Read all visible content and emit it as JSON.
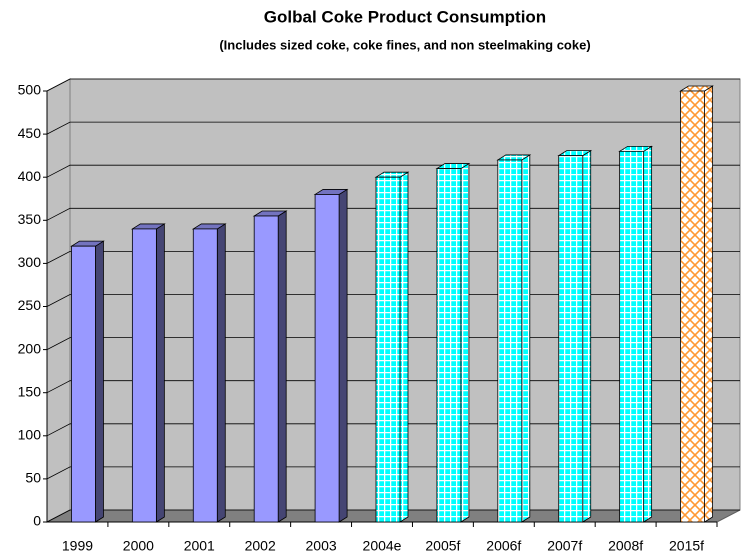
{
  "chart_data": {
    "type": "bar3d",
    "title": "Golbal Coke Product Consumption",
    "subtitle": "(Includes sized coke, coke fines, and non steelmaking coke)",
    "categories": [
      "1999",
      "2000",
      "2001",
      "2002",
      "2003",
      "2004e",
      "2005f",
      "2006f",
      "2007f",
      "2008f",
      "2015f"
    ],
    "values": [
      320,
      340,
      340,
      355,
      380,
      400,
      410,
      420,
      425,
      430,
      500
    ],
    "colors": [
      "#9999ff",
      "#9999ff",
      "#9999ff",
      "#9999ff",
      "#9999ff",
      "#00ffff",
      "#00ffff",
      "#00ffff",
      "#00ffff",
      "#00ffff",
      "#ff9933"
    ],
    "patterns": [
      "solid",
      "solid",
      "solid",
      "solid",
      "solid",
      "grid",
      "grid",
      "grid",
      "grid",
      "grid",
      "crosshatch"
    ],
    "ylim": [
      0,
      500
    ],
    "yticks": [
      0,
      50,
      100,
      150,
      200,
      250,
      300,
      350,
      400,
      450,
      500
    ],
    "grid": true
  }
}
